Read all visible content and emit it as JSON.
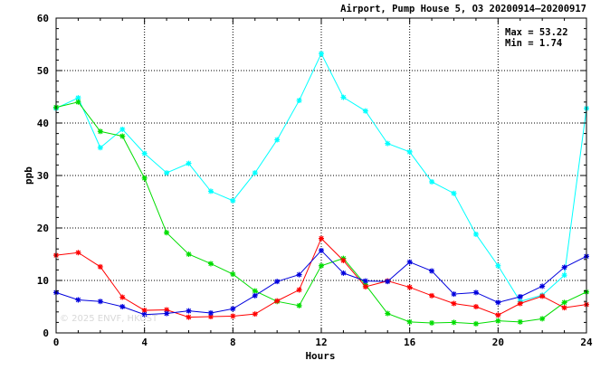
{
  "chart_data": {
    "type": "line",
    "title": "Airport, Pump House 5, O3 20200914–20200917",
    "xlabel": "Hours",
    "ylabel": "ppb",
    "xlim": [
      0,
      24
    ],
    "ylim": [
      0,
      60
    ],
    "x_ticks": [
      "0",
      "4",
      "8",
      "12",
      "16",
      "20",
      "24"
    ],
    "y_ticks": [
      "0",
      "10",
      "20",
      "30",
      "40",
      "50",
      "60"
    ],
    "grid": true,
    "stats": {
      "max": "Max = 53.22",
      "min": "Min =  1.74"
    },
    "watermark": "© 2025  ENVF, HKUST",
    "x": [
      0,
      1,
      2,
      3,
      4,
      5,
      6,
      7,
      8,
      9,
      10,
      11,
      12,
      13,
      14,
      15,
      16,
      17,
      18,
      19,
      20,
      21,
      22,
      23,
      24
    ],
    "series": [
      {
        "name": "cyan",
        "color": "#00ffff",
        "values": [
          42.8,
          44.8,
          35.3,
          38.8,
          34.2,
          30.5,
          32.3,
          27.0,
          25.2,
          30.5,
          36.8,
          44.3,
          53.22,
          44.9,
          42.3,
          36.1,
          34.5,
          28.8,
          26.6,
          18.8,
          12.8,
          6.0,
          7.2,
          11.0,
          42.8
        ]
      },
      {
        "name": "green",
        "color": "#00dd00",
        "values": [
          43.0,
          44.0,
          38.4,
          37.5,
          29.5,
          19.1,
          15.0,
          13.2,
          11.2,
          8.0,
          6.0,
          5.2,
          12.8,
          14.2,
          9.2,
          3.7,
          2.1,
          1.9,
          2.0,
          1.74,
          2.3,
          2.1,
          2.7,
          5.8,
          7.8
        ]
      },
      {
        "name": "red",
        "color": "#ff0000",
        "values": [
          14.8,
          15.3,
          12.6,
          6.8,
          4.3,
          4.4,
          3.0,
          3.1,
          3.2,
          3.6,
          6.1,
          8.2,
          18.0,
          13.8,
          8.8,
          9.9,
          8.7,
          7.1,
          5.6,
          5.0,
          3.4,
          5.6,
          7.0,
          4.8,
          5.4
        ]
      },
      {
        "name": "blue",
        "color": "#0000dd",
        "values": [
          7.7,
          6.3,
          6.0,
          5.0,
          3.5,
          3.7,
          4.2,
          3.8,
          4.6,
          7.1,
          9.8,
          11.1,
          15.7,
          11.4,
          9.9,
          9.8,
          13.5,
          11.8,
          7.4,
          7.7,
          5.8,
          6.9,
          8.9,
          12.5,
          14.6
        ]
      }
    ]
  }
}
